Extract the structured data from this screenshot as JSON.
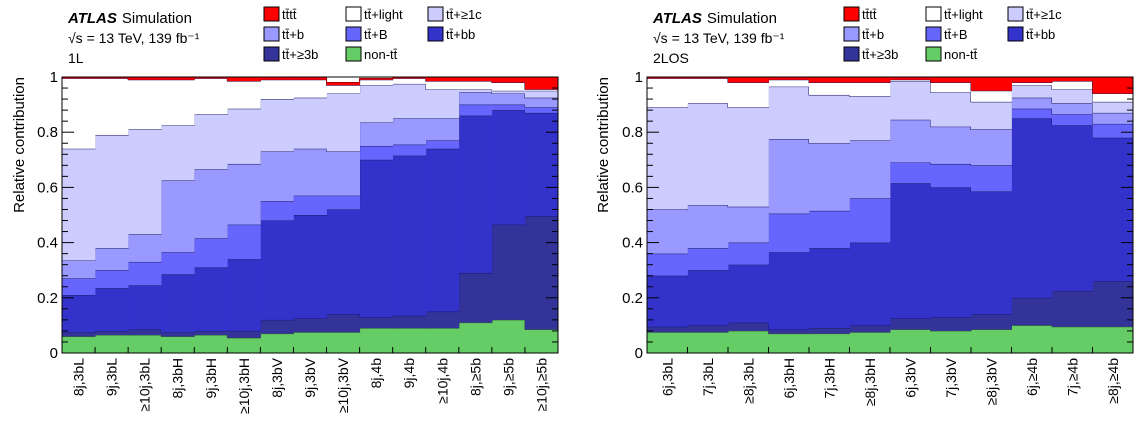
{
  "experiment": "ATLAS",
  "subtitle": "Simulation",
  "energy_line": "√s = 13 TeV, 139 fb⁻¹",
  "legend": [
    {
      "key": "tttt",
      "label": "tt̄tt̄",
      "color": "#ff0000"
    },
    {
      "key": "light",
      "label": "tt̄+light",
      "color": "#ffffff"
    },
    {
      "key": "ge1c",
      "label": "tt̄+≥1c",
      "color": "#ccccff"
    },
    {
      "key": "b",
      "label": "tt̄+b",
      "color": "#9999ff"
    },
    {
      "key": "B",
      "label": "tt̄+B",
      "color": "#6666ff"
    },
    {
      "key": "bb",
      "label": "tt̄+bb",
      "color": "#3333cc"
    },
    {
      "key": "ge3b",
      "label": "tt̄+≥3b",
      "color": "#333399"
    },
    {
      "key": "nontt",
      "label": "non-tt̄",
      "color": "#66cc66"
    }
  ],
  "chart_data": [
    {
      "type": "area",
      "region_label": "1L",
      "ylabel": "Relative contribution",
      "ylim": [
        0,
        1
      ],
      "yticks": [
        "0",
        "0.2",
        "0.4",
        "0.6",
        "0.8",
        "1"
      ],
      "categories": [
        "8j,3bL",
        "9j,3bL",
        "≥10j,3bL",
        "8j,3bH",
        "9j,3bH",
        "≥10j,3bH",
        "8j,3bV",
        "9j,3bV",
        "≥10j,3bV",
        "8j,4b",
        "9j,4b",
        "≥10j,4b",
        "8j,≥5b",
        "9j,≥5b",
        "≥10j,≥5b"
      ],
      "stack_order": [
        "nontt",
        "ge3b",
        "bb",
        "B",
        "b",
        "ge1c",
        "light",
        "tttt"
      ],
      "series": [
        {
          "key": "nontt",
          "values": [
            0.06,
            0.065,
            0.065,
            0.06,
            0.065,
            0.055,
            0.07,
            0.075,
            0.075,
            0.09,
            0.09,
            0.09,
            0.11,
            0.12,
            0.085
          ]
        },
        {
          "key": "ge3b",
          "values": [
            0.015,
            0.015,
            0.02,
            0.015,
            0.015,
            0.025,
            0.05,
            0.05,
            0.065,
            0.04,
            0.045,
            0.06,
            0.18,
            0.345,
            0.41
          ]
        },
        {
          "key": "bb",
          "values": [
            0.135,
            0.155,
            0.16,
            0.21,
            0.23,
            0.26,
            0.36,
            0.375,
            0.38,
            0.57,
            0.58,
            0.59,
            0.57,
            0.415,
            0.375
          ]
        },
        {
          "key": "B",
          "values": [
            0.06,
            0.065,
            0.085,
            0.08,
            0.105,
            0.125,
            0.07,
            0.07,
            0.05,
            0.05,
            0.04,
            0.03,
            0.04,
            0.02,
            0.02
          ]
        },
        {
          "key": "b",
          "values": [
            0.065,
            0.08,
            0.1,
            0.26,
            0.25,
            0.22,
            0.18,
            0.17,
            0.16,
            0.085,
            0.095,
            0.08,
            0.045,
            0.04,
            0.035
          ]
        },
        {
          "key": "ge1c",
          "values": [
            0.405,
            0.41,
            0.38,
            0.2,
            0.2,
            0.2,
            0.19,
            0.185,
            0.21,
            0.135,
            0.125,
            0.105,
            0.01,
            0.01,
            0.025
          ]
        },
        {
          "key": "light",
          "values": [
            0.255,
            0.205,
            0.18,
            0.165,
            0.13,
            0.1,
            0.07,
            0.065,
            0.03,
            0.02,
            0.02,
            0.03,
            0.03,
            0.03,
            0.005
          ]
        },
        {
          "key": "tttt",
          "values": [
            0.005,
            0.005,
            0.01,
            0.01,
            0.005,
            0.015,
            0.01,
            0.01,
            0.01,
            0.005,
            0.005,
            0.015,
            0.015,
            0.02,
            0.045
          ]
        }
      ]
    },
    {
      "type": "area",
      "region_label": "2LOS",
      "ylabel": "Relative contribution",
      "ylim": [
        0,
        1
      ],
      "yticks": [
        "0",
        "0.2",
        "0.4",
        "0.6",
        "0.8",
        "1"
      ],
      "categories": [
        "6j,3bL",
        "7j,3bL",
        "≥8j,3bL",
        "6j,3bH",
        "7j,3bH",
        "≥8j,3bH",
        "6j,3bV",
        "7j,3bV",
        "≥8j,3bV",
        "6j,≥4b",
        "7j,≥4b",
        "≥8j,≥4b"
      ],
      "stack_order": [
        "nontt",
        "ge3b",
        "bb",
        "B",
        "b",
        "ge1c",
        "light",
        "tttt"
      ],
      "series": [
        {
          "key": "nontt",
          "values": [
            0.075,
            0.075,
            0.08,
            0.07,
            0.07,
            0.075,
            0.085,
            0.08,
            0.085,
            0.1,
            0.095,
            0.095
          ]
        },
        {
          "key": "ge3b",
          "values": [
            0.02,
            0.025,
            0.03,
            0.015,
            0.02,
            0.025,
            0.04,
            0.05,
            0.055,
            0.1,
            0.13,
            0.165
          ]
        },
        {
          "key": "bb",
          "values": [
            0.185,
            0.2,
            0.21,
            0.28,
            0.29,
            0.3,
            0.49,
            0.47,
            0.445,
            0.65,
            0.6,
            0.52
          ]
        },
        {
          "key": "B",
          "values": [
            0.08,
            0.08,
            0.08,
            0.14,
            0.135,
            0.16,
            0.075,
            0.085,
            0.095,
            0.035,
            0.04,
            0.05
          ]
        },
        {
          "key": "b",
          "values": [
            0.16,
            0.155,
            0.13,
            0.27,
            0.245,
            0.21,
            0.155,
            0.135,
            0.13,
            0.04,
            0.04,
            0.04
          ]
        },
        {
          "key": "ge1c",
          "values": [
            0.37,
            0.37,
            0.36,
            0.19,
            0.175,
            0.16,
            0.14,
            0.125,
            0.1,
            0.045,
            0.05,
            0.04
          ]
        },
        {
          "key": "light",
          "values": [
            0.105,
            0.09,
            0.09,
            0.025,
            0.045,
            0.05,
            0.005,
            0.035,
            0.04,
            0.01,
            0.03,
            0.03
          ]
        },
        {
          "key": "tttt",
          "values": [
            0.005,
            0.005,
            0.02,
            0.01,
            0.02,
            0.02,
            0.01,
            0.02,
            0.05,
            0.02,
            0.015,
            0.06
          ]
        }
      ]
    }
  ]
}
